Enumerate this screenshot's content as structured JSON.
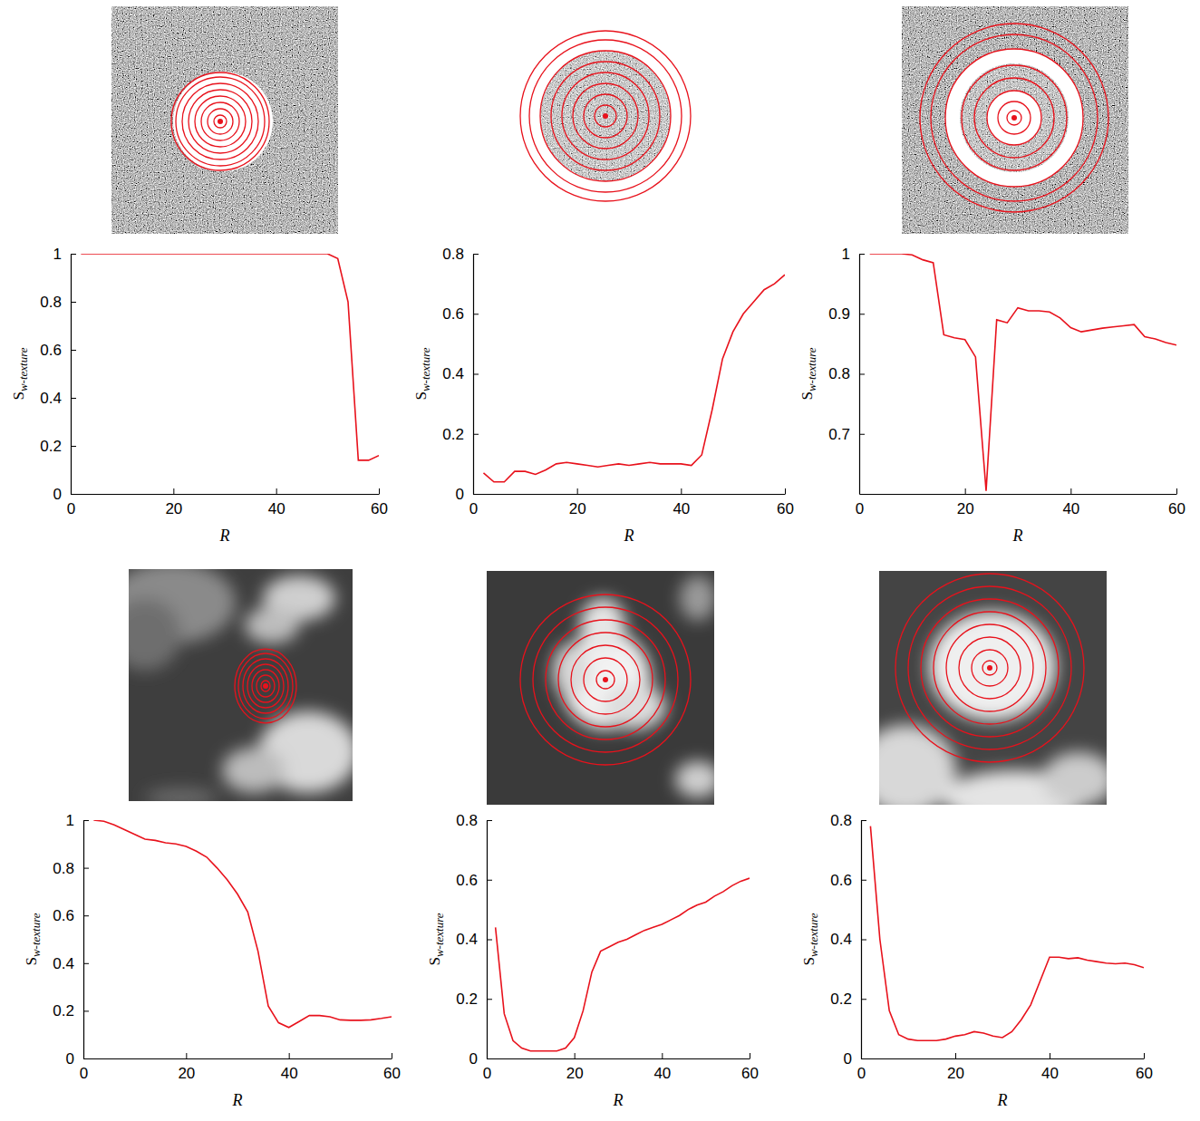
{
  "chart_data": [
    {
      "type": "line",
      "x_label": "R",
      "y_label": "S",
      "y_label_subscript": "w-texture",
      "color": "#e8121c",
      "x": [
        2,
        4,
        6,
        8,
        10,
        12,
        14,
        16,
        18,
        20,
        22,
        24,
        26,
        28,
        30,
        32,
        34,
        36,
        38,
        40,
        42,
        44,
        46,
        48,
        50,
        52,
        54,
        56,
        58,
        60
      ],
      "values": [
        1,
        1,
        1,
        1,
        1,
        1,
        1,
        1,
        1,
        1,
        1,
        1,
        1,
        1,
        1,
        1,
        1,
        1,
        1,
        1,
        1,
        1,
        1,
        1,
        1,
        0.98,
        0.8,
        0.14,
        0.14,
        0.16
      ],
      "xlim": [
        0,
        60
      ],
      "xticks": [
        0,
        20,
        40,
        60
      ],
      "ylim": [
        0,
        1
      ],
      "yticks": [
        0,
        0.2,
        0.4,
        0.6,
        0.8,
        1
      ]
    },
    {
      "type": "line",
      "x_label": "R",
      "y_label": "S",
      "y_label_subscript": "w-texture",
      "color": "#e8121c",
      "x": [
        2,
        4,
        6,
        8,
        10,
        12,
        14,
        16,
        18,
        20,
        22,
        24,
        26,
        28,
        30,
        32,
        34,
        36,
        38,
        40,
        42,
        44,
        46,
        48,
        50,
        52,
        54,
        56,
        58,
        60
      ],
      "values": [
        0.07,
        0.04,
        0.04,
        0.075,
        0.075,
        0.065,
        0.08,
        0.1,
        0.105,
        0.1,
        0.095,
        0.09,
        0.095,
        0.1,
        0.095,
        0.1,
        0.105,
        0.1,
        0.1,
        0.1,
        0.095,
        0.13,
        0.28,
        0.45,
        0.54,
        0.6,
        0.64,
        0.68,
        0.7,
        0.73
      ],
      "xlim": [
        0,
        60
      ],
      "xticks": [
        0,
        20,
        40,
        60
      ],
      "ylim": [
        0,
        0.8
      ],
      "yticks": [
        0,
        0.2,
        0.4,
        0.6,
        0.8
      ]
    },
    {
      "type": "line",
      "x_label": "R",
      "y_label": "S",
      "y_label_subscript": "w-texture",
      "color": "#e8121c",
      "x": [
        2,
        4,
        6,
        8,
        10,
        12,
        14,
        16,
        18,
        20,
        22,
        24,
        26,
        28,
        30,
        32,
        34,
        36,
        38,
        40,
        42,
        44,
        46,
        48,
        50,
        52,
        54,
        56,
        58,
        60
      ],
      "values": [
        1,
        1,
        1,
        1,
        0.998,
        0.99,
        0.985,
        0.865,
        0.86,
        0.857,
        0.828,
        0.605,
        0.89,
        0.885,
        0.91,
        0.905,
        0.905,
        0.903,
        0.893,
        0.877,
        0.87,
        0.873,
        0.876,
        0.878,
        0.88,
        0.882,
        0.862,
        0.858,
        0.852,
        0.848
      ],
      "xlim": [
        0,
        60
      ],
      "xticks": [
        0,
        20,
        40,
        60
      ],
      "ylim": [
        0.6,
        1
      ],
      "yticks": [
        0.7,
        0.8,
        0.9,
        1
      ]
    },
    {
      "type": "line",
      "x_label": "R",
      "y_label": "S",
      "y_label_subscript": "w-texture",
      "color": "#e8121c",
      "x": [
        2,
        4,
        6,
        8,
        10,
        12,
        14,
        16,
        18,
        20,
        22,
        24,
        26,
        28,
        30,
        32,
        34,
        36,
        38,
        40,
        42,
        44,
        46,
        48,
        50,
        52,
        54,
        56,
        58,
        60
      ],
      "values": [
        1,
        0.995,
        0.98,
        0.96,
        0.94,
        0.92,
        0.915,
        0.905,
        0.9,
        0.89,
        0.87,
        0.845,
        0.8,
        0.75,
        0.69,
        0.615,
        0.45,
        0.22,
        0.15,
        0.13,
        0.155,
        0.18,
        0.18,
        0.175,
        0.162,
        0.16,
        0.16,
        0.162,
        0.168,
        0.175
      ],
      "xlim": [
        0,
        60
      ],
      "xticks": [
        0,
        20,
        40,
        60
      ],
      "ylim": [
        0,
        1
      ],
      "yticks": [
        0,
        0.2,
        0.4,
        0.6,
        0.8,
        1
      ]
    },
    {
      "type": "line",
      "x_label": "R",
      "y_label": "S",
      "y_label_subscript": "w-texture",
      "color": "#e8121c",
      "x": [
        2,
        4,
        6,
        8,
        10,
        12,
        14,
        16,
        18,
        20,
        22,
        24,
        26,
        28,
        30,
        32,
        34,
        36,
        38,
        40,
        42,
        44,
        46,
        48,
        50,
        52,
        54,
        56,
        58,
        60
      ],
      "values": [
        0.44,
        0.15,
        0.06,
        0.035,
        0.025,
        0.025,
        0.025,
        0.025,
        0.035,
        0.07,
        0.16,
        0.29,
        0.36,
        0.375,
        0.39,
        0.4,
        0.415,
        0.43,
        0.44,
        0.45,
        0.465,
        0.48,
        0.5,
        0.515,
        0.525,
        0.545,
        0.56,
        0.58,
        0.595,
        0.605
      ],
      "xlim": [
        0,
        60
      ],
      "xticks": [
        0,
        20,
        40,
        60
      ],
      "ylim": [
        0,
        0.8
      ],
      "yticks": [
        0,
        0.2,
        0.4,
        0.6,
        0.8
      ]
    },
    {
      "type": "line",
      "x_label": "R",
      "y_label": "S",
      "y_label_subscript": "w-texture",
      "color": "#e8121c",
      "x": [
        2,
        4,
        6,
        8,
        10,
        12,
        14,
        16,
        18,
        20,
        22,
        24,
        26,
        28,
        30,
        32,
        34,
        36,
        38,
        40,
        42,
        44,
        46,
        48,
        50,
        52,
        54,
        56,
        58,
        60
      ],
      "values": [
        0.78,
        0.4,
        0.16,
        0.08,
        0.065,
        0.06,
        0.06,
        0.06,
        0.065,
        0.075,
        0.08,
        0.09,
        0.085,
        0.075,
        0.07,
        0.09,
        0.13,
        0.18,
        0.26,
        0.34,
        0.34,
        0.335,
        0.338,
        0.33,
        0.325,
        0.32,
        0.318,
        0.32,
        0.315,
        0.305
      ],
      "xlim": [
        0,
        60
      ],
      "xticks": [
        0,
        20,
        40,
        60
      ],
      "ylim": [
        0,
        0.8
      ],
      "yticks": [
        0,
        0.2,
        0.4,
        0.6,
        0.8
      ]
    }
  ]
}
